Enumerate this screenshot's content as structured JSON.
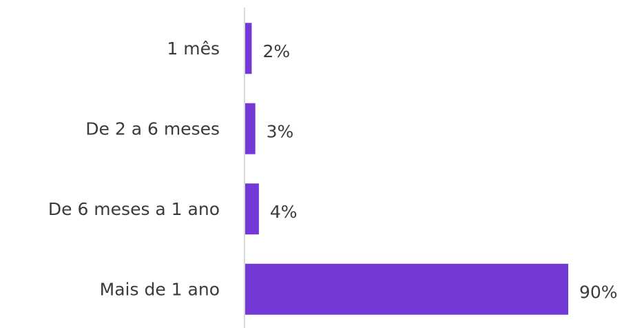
{
  "chart_data": {
    "type": "bar",
    "orientation": "horizontal",
    "categories": [
      "1 mês",
      "De 2 a 6 meses",
      "De 6 meses a 1 ano",
      "Mais de 1 ano"
    ],
    "values": [
      2,
      3,
      4,
      90
    ],
    "value_labels": [
      "2%",
      "3%",
      "4%",
      "90%"
    ],
    "unit": "%",
    "title": "",
    "xlabel": "",
    "ylabel": "",
    "xlim": [
      0,
      90
    ],
    "grid": false,
    "legend": "none",
    "colors": {
      "bar": "#7338d6",
      "axis": "#d9d9d9",
      "text": "#3b3b3b"
    }
  }
}
